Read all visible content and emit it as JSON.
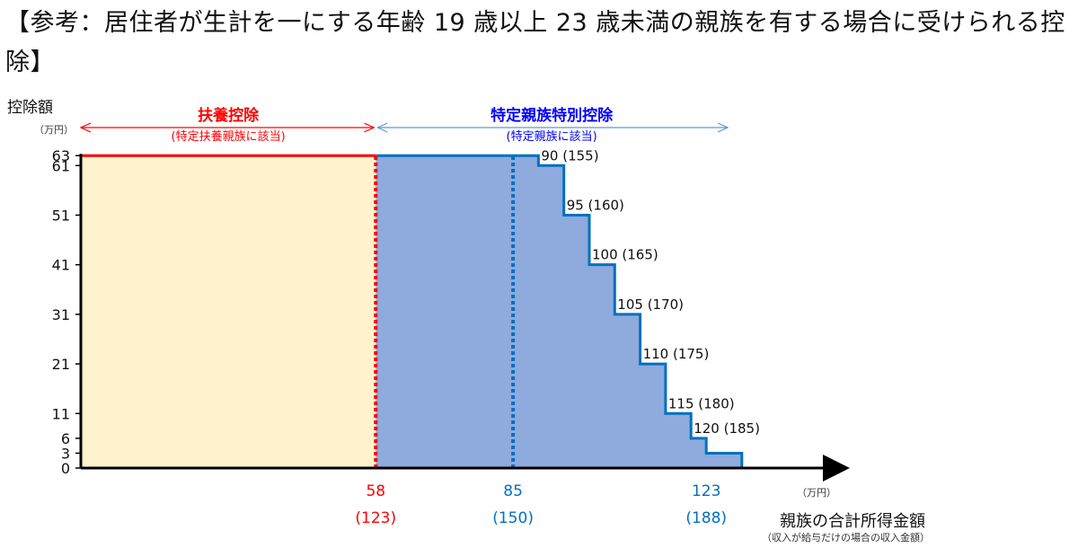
{
  "title": "【参考：居住者が生計を一にする年齢 19 歳以上 23 歳未満の親族を有する場合に受けられる控除】",
  "colors": {
    "fuyou_fill": "#fff2cc",
    "tokutei_fill": "#8faadc",
    "red": "#ff0000",
    "blue": "#0070c0",
    "dark_blue": "#0000ff",
    "arrow_blue": "#5b9bd5",
    "axis": "#000000"
  },
  "chart_data": {
    "type": "area",
    "title": "",
    "ylabel": "控除額",
    "yunit": "（万円）",
    "xunit": "（万円）",
    "xlabel": "親族の合計所得金額",
    "xsublabel": "（収入が給与だけの場合の収入金額）",
    "yticks": [
      63,
      61,
      51,
      41,
      31,
      21,
      11,
      6,
      3,
      0
    ],
    "ylim": [
      0,
      63
    ],
    "xlim": [
      0,
      131
    ],
    "x_markers": [
      {
        "x": 58,
        "label": "58",
        "sublabel": "(123)",
        "color": "red",
        "style": "dotted"
      },
      {
        "x": 85,
        "label": "85",
        "sublabel": "(150)",
        "color": "blue",
        "style": "dotted"
      },
      {
        "x": 123,
        "label": "123",
        "sublabel": "(188)",
        "color": "blue",
        "style": "none"
      }
    ],
    "step_points": [
      {
        "x": 0,
        "y": 63
      },
      {
        "x": 85,
        "y": 63
      },
      {
        "x": 90,
        "y": 61
      },
      {
        "x": 95,
        "y": 51
      },
      {
        "x": 100,
        "y": 41
      },
      {
        "x": 105,
        "y": 31
      },
      {
        "x": 110,
        "y": 21
      },
      {
        "x": 115,
        "y": 11
      },
      {
        "x": 120,
        "y": 6
      },
      {
        "x": 123,
        "y": 3
      },
      {
        "x": 130,
        "y": 0
      }
    ],
    "step_labels": [
      {
        "x": 90,
        "y": 61,
        "text": "90 (155)"
      },
      {
        "x": 95,
        "y": 51,
        "text": "95 (160)"
      },
      {
        "x": 100,
        "y": 41,
        "text": "100 (165)"
      },
      {
        "x": 105,
        "y": 31,
        "text": "105 (170)"
      },
      {
        "x": 110,
        "y": 21,
        "text": "110 (175)"
      },
      {
        "x": 115,
        "y": 11,
        "text": "115 (180)"
      },
      {
        "x": 120,
        "y": 6,
        "text": "120 (185)"
      }
    ],
    "ranges": [
      {
        "name": "扶養控除",
        "sub": "(特定扶養親族に該当)",
        "from": 0,
        "to": 58,
        "color": "red"
      },
      {
        "name": "特定親族特別控除",
        "sub": "(特定親族に該当)",
        "from": 58,
        "to": 123,
        "color": "blue"
      }
    ]
  }
}
